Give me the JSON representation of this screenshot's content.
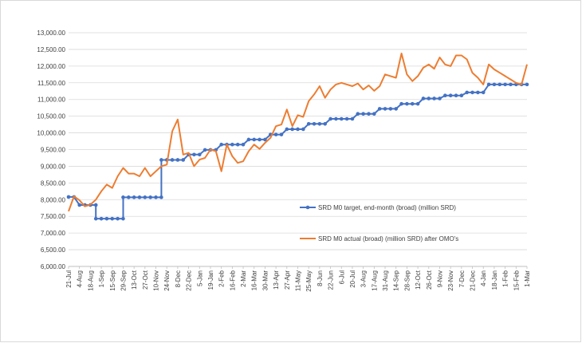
{
  "chart_data": {
    "type": "line",
    "colors": {
      "target": "#4472c4",
      "actual": "#ed7d31",
      "grid": "#d9d9d9",
      "axis": "#bfbfbf"
    },
    "ylim": [
      6000,
      13000
    ],
    "ytick_step": 500,
    "ytick_labels": [
      "6,000.00",
      "6,500.00",
      "7,000.00",
      "7,500.00",
      "8,000.00",
      "8,500.00",
      "9,000.00",
      "9,500.00",
      "10,000.00",
      "10,500.00",
      "11,000.00",
      "11,500.00",
      "12,000.00",
      "12,500.00",
      "13,000.00"
    ],
    "xtick_labels": [
      "21-Jul",
      "4-Aug",
      "18-Aug",
      "1-Sep",
      "15-Sep",
      "29-Sep",
      "13-Oct",
      "27-Oct",
      "10-Nov",
      "24-Nov",
      "8-Dec",
      "22-Dec",
      "5-Jan",
      "19-Jan",
      "2-Feb",
      "16-Feb",
      "2-Mar",
      "16-Mar",
      "30-Mar",
      "13-Apr",
      "27-Apr",
      "11-May",
      "25-May",
      "8-Jun",
      "22-Jun",
      "6-Jul",
      "20-Jul",
      "3-Aug",
      "17-Aug",
      "31-Aug",
      "14-Sep",
      "28-Sep",
      "12-Oct",
      "26-Oct",
      "9-Nov",
      "23-Nov",
      "7-Dec",
      "21-Dec",
      "4-Jan",
      "18-Jan",
      "1-Feb",
      "15-Feb",
      "1-Mar"
    ],
    "grid": true,
    "legend_placement": "right, inside plot",
    "series": [
      {
        "name": "SRD M0 target, end-month (broad)  (million SRD)",
        "x_index": [
          0,
          1,
          2,
          3,
          4,
          5,
          5,
          6,
          7,
          8,
          9,
          10,
          10,
          11,
          12,
          13,
          14,
          15,
          16,
          17,
          17,
          18,
          19,
          20,
          21,
          22,
          23,
          24,
          25,
          26,
          27,
          28,
          29,
          30,
          31,
          32,
          33,
          34,
          35,
          36,
          37,
          38,
          39,
          40,
          41,
          42,
          43,
          44,
          45,
          46,
          47,
          48,
          49,
          50,
          51,
          52,
          53,
          54,
          55,
          56,
          57,
          58,
          59,
          60,
          61,
          62,
          63,
          64,
          65,
          66,
          67,
          68,
          69,
          70,
          71,
          72,
          73,
          74,
          75,
          76,
          77,
          78,
          79,
          80,
          81,
          82,
          83,
          84
        ],
        "values": [
          8080,
          8080,
          7840,
          7840,
          7840,
          7840,
          7430,
          7430,
          7430,
          7430,
          7430,
          7430,
          8070,
          8070,
          8070,
          8070,
          8070,
          8070,
          8070,
          8070,
          9190,
          9190,
          9190,
          9190,
          9190,
          9350,
          9350,
          9350,
          9490,
          9490,
          9490,
          9650,
          9650,
          9650,
          9650,
          9650,
          9800,
          9800,
          9800,
          9800,
          9950,
          9950,
          9950,
          10110,
          10110,
          10110,
          10110,
          10270,
          10270,
          10270,
          10270,
          10420,
          10420,
          10420,
          10420,
          10420,
          10570,
          10570,
          10570,
          10570,
          10720,
          10720,
          10720,
          10720,
          10870,
          10870,
          10870,
          10870,
          11030,
          11030,
          11030,
          11030,
          11120,
          11120,
          11120,
          11120,
          11210,
          11210,
          11210,
          11210,
          11450,
          11450,
          11450,
          11450,
          11450,
          11450,
          11450,
          11450
        ]
      },
      {
        "name": "SRD M0 actual (broad) (million SRD) after OMO's",
        "x_index": [
          0,
          1,
          2,
          3,
          4,
          5,
          6,
          7,
          8,
          9,
          10,
          11,
          12,
          13,
          14,
          15,
          16,
          17,
          18,
          19,
          20,
          21,
          22,
          23,
          24,
          25,
          26,
          27,
          28,
          29,
          30,
          31,
          32,
          33,
          34,
          35,
          36,
          37,
          38,
          39,
          40,
          41,
          42,
          43,
          44,
          45,
          46,
          47,
          48,
          49,
          50,
          51,
          52,
          53,
          54,
          55,
          56,
          57,
          58,
          59,
          60,
          61,
          62,
          63,
          64,
          65,
          66,
          67,
          68,
          69,
          70,
          71,
          72,
          73,
          74,
          75,
          76,
          77,
          78,
          79,
          80,
          81,
          82,
          83,
          84
        ],
        "values": [
          7650,
          8100,
          7980,
          7800,
          7850,
          8000,
          8250,
          8450,
          8350,
          8700,
          8950,
          8780,
          8780,
          8700,
          8950,
          8700,
          8850,
          9000,
          9050,
          10050,
          10400,
          9350,
          9400,
          9000,
          9200,
          9250,
          9500,
          9450,
          8850,
          9650,
          9300,
          9100,
          9150,
          9450,
          9650,
          9520,
          9700,
          9850,
          10200,
          10250,
          10700,
          10200,
          10530,
          10480,
          10950,
          11150,
          11400,
          11050,
          11300,
          11450,
          11500,
          11450,
          11400,
          11480,
          11300,
          11420,
          11260,
          11400,
          11750,
          11700,
          11650,
          12380,
          11750,
          11550,
          11700,
          11950,
          12050,
          11920,
          12260,
          12050,
          12000,
          12320,
          12320,
          12200,
          11800,
          11650,
          11450,
          12050,
          11900,
          11800,
          11700,
          11600,
          11500,
          11450,
          12050
        ]
      }
    ]
  }
}
